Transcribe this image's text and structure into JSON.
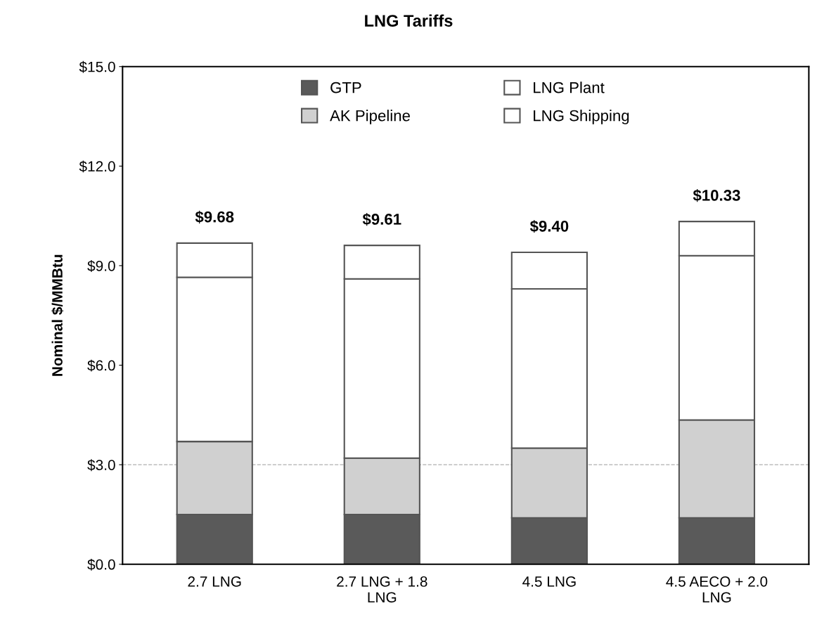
{
  "chart_data": {
    "type": "bar",
    "title": "LNG Tariffs",
    "ylabel": "Nominal $/MMBtu",
    "categories": [
      "2.7 LNG",
      "2.7 LNG + 1.8\nLNG",
      "4.5 LNG",
      "4.5 AECO + 2.0\nLNG"
    ],
    "series": [
      {
        "name": "GTP",
        "color": "#5a5a5a",
        "values": [
          1.5,
          1.5,
          1.4,
          1.4
        ]
      },
      {
        "name": "AK Pipeline",
        "color": "#d0d0d0",
        "values": [
          2.2,
          1.7,
          2.1,
          2.95
        ]
      },
      {
        "name": "LNG Plant",
        "color": "#ffffff",
        "values": [
          4.95,
          5.4,
          4.8,
          4.95
        ]
      },
      {
        "name": "LNG Shipping",
        "color": "#ffffff",
        "values": [
          1.03,
          1.01,
          1.1,
          1.03
        ]
      }
    ],
    "stacked": true,
    "totals": [
      "$9.68",
      "$9.61",
      "$9.40",
      "$10.33"
    ],
    "ylim": [
      0,
      15
    ],
    "yticks": [
      {
        "value": 0,
        "label": "$0.0"
      },
      {
        "value": 3,
        "label": "$3.0"
      },
      {
        "value": 6,
        "label": "$6.0"
      },
      {
        "value": 9,
        "label": "$9.0"
      },
      {
        "value": 12,
        "label": "$12.0"
      },
      {
        "value": 15,
        "label": "$15.0"
      }
    ],
    "ref_lines": [
      {
        "axis": "y",
        "value": 3,
        "label": null,
        "color": "#b0b0b0",
        "line_style": "dashed"
      }
    ],
    "legend": "top",
    "grid": false
  }
}
